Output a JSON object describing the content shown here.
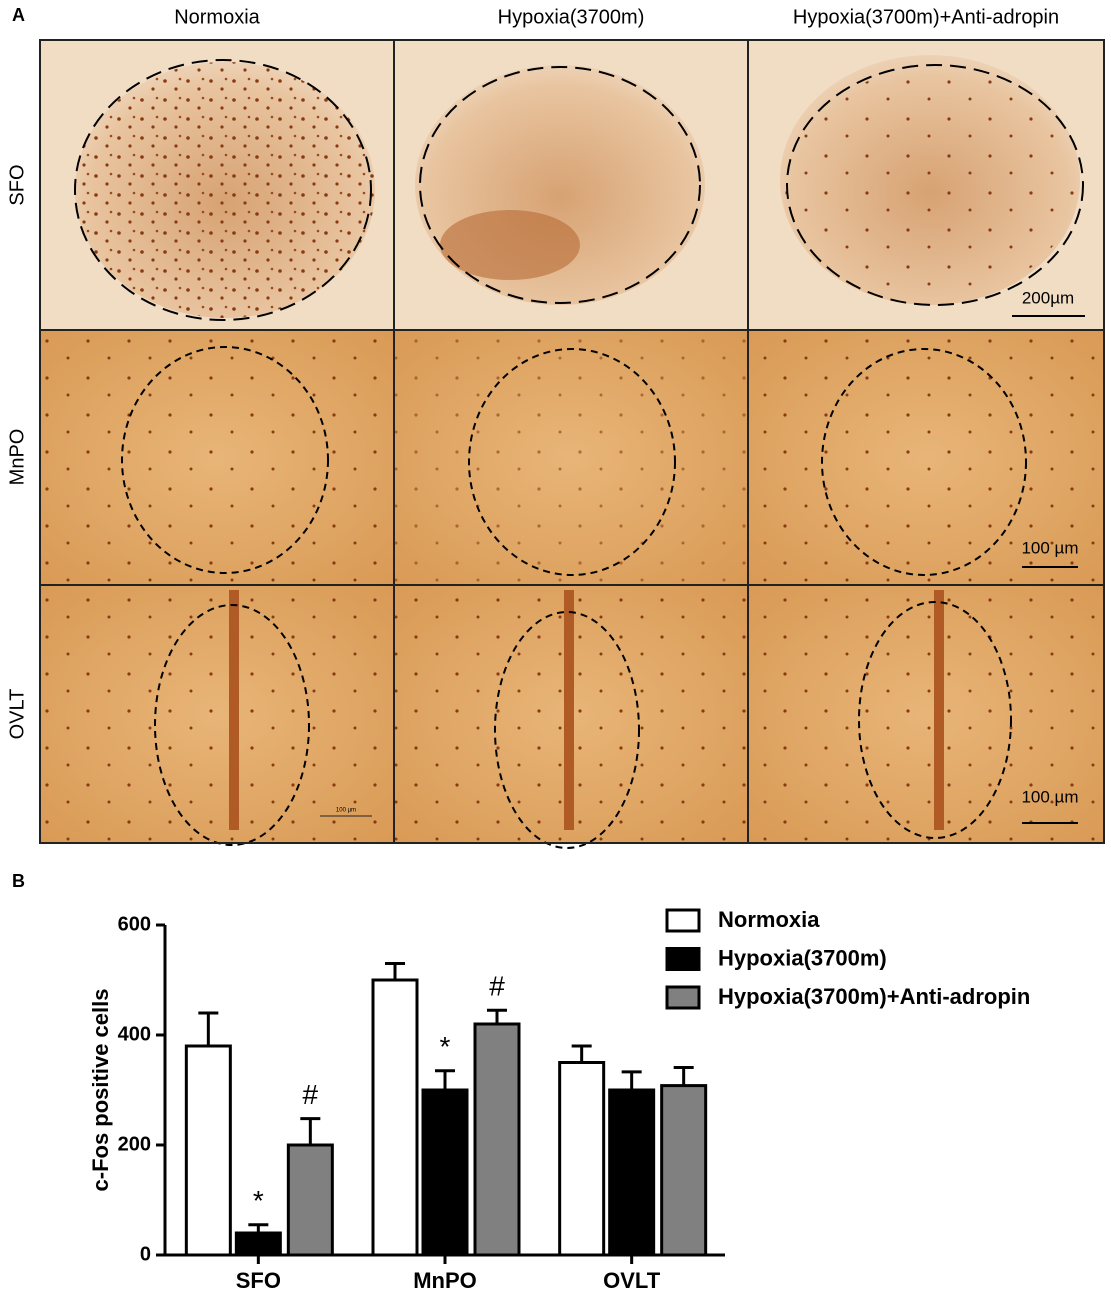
{
  "panel_a": {
    "label": "A",
    "columns": [
      "Normoxia",
      "Hypoxia(3700m)",
      "Hypoxia(3700m)+Anti-adropin"
    ],
    "rows": [
      "SFO",
      "MnPO",
      "OVLT"
    ],
    "scale_bars": [
      "200µm",
      "100 µm",
      "100 µm"
    ],
    "inset_scale_bar": "100 µm"
  },
  "chart_data": {
    "type": "bar",
    "label": "B",
    "categories": [
      "SFO",
      "MnPO",
      "OVLT"
    ],
    "series": [
      {
        "name": "Normoxia",
        "color": "#ffffff",
        "values": [
          380,
          500,
          350
        ],
        "errors": [
          60,
          30,
          30
        ],
        "markers": [
          null,
          null,
          null
        ]
      },
      {
        "name": "Hypoxia(3700m)",
        "color": "#000000",
        "values": [
          40,
          300,
          300
        ],
        "errors": [
          15,
          35,
          33
        ],
        "markers": [
          "*",
          "*",
          null
        ]
      },
      {
        "name": "Hypoxia(3700m)+Anti-adropin",
        "color": "#808080",
        "values": [
          200,
          420,
          308
        ],
        "errors": [
          48,
          25,
          33
        ],
        "markers": [
          "#",
          "#",
          null
        ]
      }
    ],
    "y_label": "c-Fos positive cells",
    "ylim": [
      0,
      600
    ],
    "yticks": [
      0,
      200,
      400,
      600
    ]
  }
}
